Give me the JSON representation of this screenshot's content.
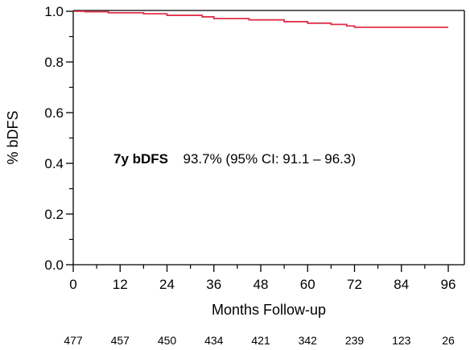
{
  "chart_data": {
    "type": "line",
    "xlabel": "Months Follow-up",
    "ylabel": "% bDFS",
    "xlim": [
      0,
      96
    ],
    "ylim": [
      0.0,
      1.0
    ],
    "x_ticks": [
      0,
      12,
      24,
      36,
      48,
      60,
      72,
      84,
      96
    ],
    "x_tick_labels": [
      "0",
      "12",
      "24",
      "36",
      "48",
      "60",
      "72",
      "84",
      "96"
    ],
    "y_ticks": [
      0.0,
      0.2,
      0.4,
      0.6,
      0.8,
      1.0
    ],
    "y_tick_labels": [
      "0.0",
      "0.2",
      "0.4",
      "0.6",
      "0.8",
      "1.0"
    ],
    "grid": false,
    "series": [
      {
        "color": "#e0304a",
        "step": true,
        "x": [
          0,
          3,
          9,
          18,
          24,
          33,
          36,
          45,
          54,
          60,
          66,
          70,
          72,
          96
        ],
        "y": [
          1.0,
          0.998,
          0.994,
          0.99,
          0.984,
          0.978,
          0.971,
          0.966,
          0.959,
          0.953,
          0.948,
          0.942,
          0.937,
          0.937
        ]
      }
    ],
    "annotation": {
      "label": "7y bDFS",
      "text": "93.7% (95% CI: 91.1 – 96.3)"
    },
    "at_risk": [
      "477",
      "457",
      "450",
      "434",
      "421",
      "342",
      "239",
      "123",
      "26"
    ]
  }
}
